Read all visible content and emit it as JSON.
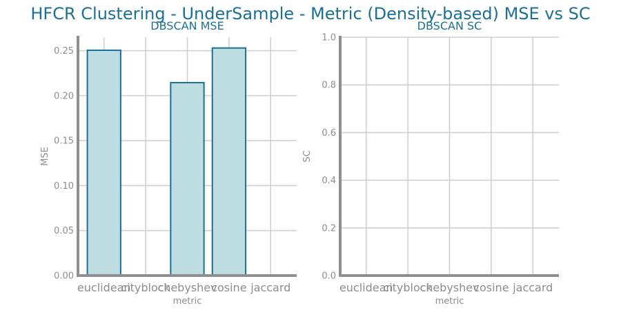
{
  "suptitle": "HFCR Clustering - UnderSample - Metric (Density-based) MSE vs SC",
  "colors": {
    "title": "#1a6f97",
    "bar_fill": "#bedde0",
    "bar_edge": "#1a6f97",
    "tick": "#8c8c8c",
    "grid": "#cfcfcf",
    "spine": "#8f8f93"
  },
  "chart_data": [
    {
      "type": "bar",
      "title": "DBSCAN MSE",
      "xlabel": "metric",
      "ylabel": "MSE",
      "categories": [
        "euclidean",
        "cityblock",
        "chebyshev",
        "cosine",
        "jaccard"
      ],
      "values": [
        0.2505,
        null,
        0.2145,
        0.253,
        null
      ],
      "ylim": [
        0,
        0.265
      ],
      "yticks": [
        0.0,
        0.05,
        0.1,
        0.15,
        0.2,
        0.25
      ],
      "ytick_labels": [
        "0.00",
        "0.05",
        "0.10",
        "0.15",
        "0.20",
        "0.25"
      ],
      "grid": true
    },
    {
      "type": "bar",
      "title": "DBSCAN SC",
      "xlabel": "metric",
      "ylabel": "SC",
      "categories": [
        "euclidean",
        "cityblock",
        "chebyshev",
        "cosine",
        "jaccard"
      ],
      "values": [
        null,
        null,
        null,
        null,
        null
      ],
      "ylim": [
        0,
        1.0
      ],
      "yticks": [
        0.0,
        0.2,
        0.4,
        0.6,
        0.8,
        1.0
      ],
      "ytick_labels": [
        "0.0",
        "0.2",
        "0.4",
        "0.6",
        "0.8",
        "1.0"
      ],
      "grid": true
    }
  ]
}
